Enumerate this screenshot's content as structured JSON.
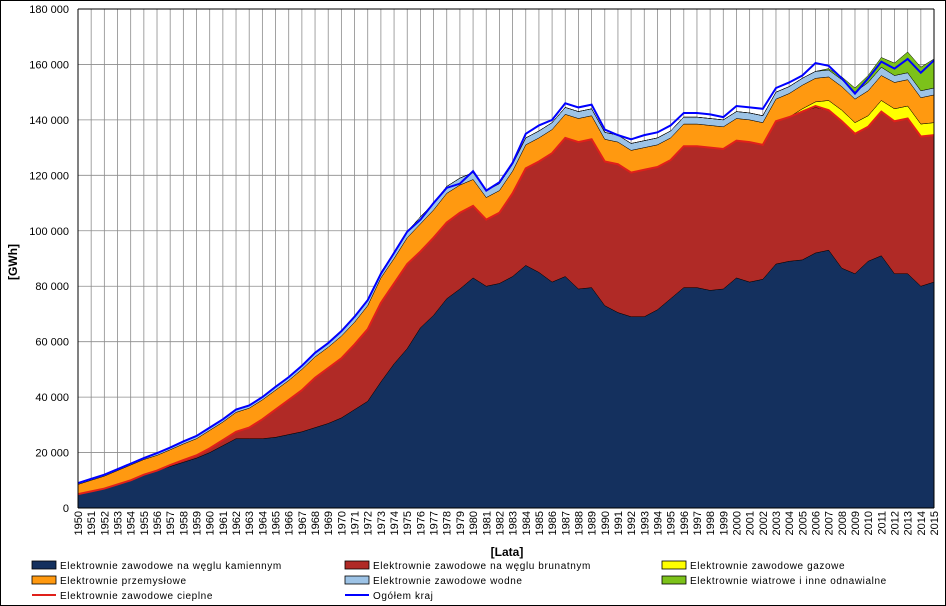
{
  "chart_data": {
    "type": "area",
    "xlabel": "[Lata]",
    "ylabel": "[GWh]",
    "ylim": [
      0,
      180000
    ],
    "y_ticks": [
      "0",
      "20 000",
      "40 000",
      "60 000",
      "80 000",
      "100 000",
      "120 000",
      "140 000",
      "160 000",
      "180 000"
    ],
    "grid": true,
    "legend_position": "bottom",
    "x": [
      "1950",
      "1951",
      "1952",
      "1953",
      "1954",
      "1955",
      "1956",
      "1957",
      "1958",
      "1959",
      "1960",
      "1961",
      "1962",
      "1963",
      "1964",
      "1965",
      "1966",
      "1967",
      "1968",
      "1969",
      "1970",
      "1971",
      "1972",
      "1973",
      "1974",
      "1975",
      "1976",
      "1977",
      "1978",
      "1979",
      "1980",
      "1981",
      "1982",
      "1983",
      "1984",
      "1985",
      "1986",
      "1987",
      "1988",
      "1989",
      "1990",
      "1991",
      "1992",
      "1993",
      "1994",
      "1995",
      "1996",
      "1997",
      "1998",
      "1999",
      "2000",
      "2001",
      "2002",
      "2003",
      "2004",
      "2005",
      "2006",
      "2007",
      "2008",
      "2009",
      "2010",
      "2011",
      "2012",
      "2013",
      "2014",
      "2015"
    ],
    "series": [
      {
        "name": "Elektrownie zawodowe na węglu kamiennym",
        "kind": "area",
        "color": "#14305e",
        "values": [
          5000,
          6000,
          7000,
          8500,
          10000,
          12000,
          13500,
          15000,
          16500,
          18000,
          20000,
          22500,
          25000,
          25000,
          25000,
          25500,
          26500,
          27500,
          29000,
          30500,
          32500,
          35500,
          38500,
          45500,
          52000,
          57500,
          65000,
          69500,
          75500,
          79000,
          83000,
          80000,
          81000,
          83500,
          87500,
          85000,
          81500,
          83500,
          79000,
          79500,
          73000,
          70500,
          69000,
          69000,
          71500,
          75500,
          79500,
          79500,
          78500,
          79000,
          83000,
          81500,
          82500,
          88000,
          89000,
          89500,
          92000,
          93000,
          86500,
          84500,
          89000,
          91000,
          84500,
          84500,
          80000,
          81500
        ]
      },
      {
        "name": "Elektrownie zawodowe na węglu brunatnym",
        "kind": "area",
        "color": "#b02a26",
        "values": [
          0,
          0,
          0,
          0,
          0,
          0,
          0,
          500,
          800,
          1000,
          1500,
          2000,
          2500,
          4000,
          7000,
          10000,
          12500,
          15000,
          18000,
          20000,
          21500,
          23500,
          26000,
          28500,
          29000,
          30500,
          27500,
          28000,
          27500,
          27500,
          26000,
          24000,
          25500,
          30000,
          35000,
          40000,
          46500,
          50000,
          53000,
          53500,
          52000,
          53500,
          52000,
          53000,
          51500,
          50000,
          51000,
          51000,
          51500,
          50500,
          49500,
          50500,
          48500,
          51500,
          52000,
          53500,
          52500,
          50500,
          53000,
          50500,
          48500,
          52000,
          55000,
          56000,
          54000,
          53000
        ]
      },
      {
        "name": "Elektrownie zawodowe cieplne",
        "kind": "line",
        "color": "#e0201a",
        "values": [
          5000,
          6000,
          7000,
          8500,
          10000,
          12000,
          13500,
          15500,
          17300,
          19000,
          21500,
          24500,
          27500,
          29000,
          32000,
          35500,
          39000,
          42500,
          47000,
          50500,
          54000,
          59000,
          64500,
          74000,
          81000,
          88000,
          92500,
          97500,
          103000,
          106500,
          109000,
          104000,
          106500,
          113500,
          122500,
          125000,
          128000,
          133500,
          132000,
          133000,
          125000,
          124000,
          121000,
          122000,
          123000,
          125500,
          130500,
          130500,
          130000,
          129500,
          132500,
          132000,
          131000,
          139500,
          141000,
          143000,
          145000,
          143500,
          139500,
          135000,
          137500,
          143000,
          139500,
          140500,
          134000,
          134500
        ]
      },
      {
        "name": "Elektrownie zawodowe gazowe",
        "kind": "area",
        "color": "#ffff00",
        "values": [
          0,
          0,
          0,
          0,
          0,
          0,
          0,
          0,
          0,
          0,
          0,
          0,
          0,
          0,
          0,
          0,
          0,
          0,
          0,
          0,
          0,
          0,
          0,
          0,
          0,
          0,
          0,
          0,
          0,
          0,
          0,
          0,
          0,
          0,
          0,
          0,
          0,
          0,
          0,
          0,
          0,
          0,
          0,
          0,
          0,
          0,
          0,
          0,
          0,
          0,
          0,
          0,
          0,
          0,
          0,
          1000,
          2000,
          3500,
          4000,
          4000,
          4000,
          4000,
          4500,
          4500,
          4500,
          4500
        ]
      },
      {
        "name": "Elektrownie przemysłowe",
        "kind": "area",
        "color": "#ff9910",
        "values": [
          3500,
          4000,
          4500,
          5000,
          5500,
          5500,
          5500,
          5500,
          5800,
          6000,
          6500,
          6500,
          7000,
          7000,
          7000,
          7000,
          7000,
          7500,
          7500,
          7500,
          8000,
          8000,
          8500,
          9000,
          9000,
          9500,
          10000,
          10000,
          10500,
          10000,
          9500,
          8000,
          8000,
          8000,
          8500,
          8500,
          8500,
          8500,
          8500,
          8500,
          8000,
          8000,
          8000,
          8000,
          8000,
          8000,
          8000,
          8000,
          8000,
          8000,
          8000,
          8000,
          8000,
          8000,
          8500,
          8500,
          8500,
          8500,
          8500,
          8500,
          9000,
          9000,
          9500,
          9500,
          9500,
          10000
        ]
      },
      {
        "name": "Elektrownie zawodowe wodne",
        "kind": "area",
        "color": "#9dc3e6",
        "values": [
          500,
          500,
          500,
          500,
          500,
          500,
          800,
          800,
          800,
          800,
          900,
          1000,
          1000,
          1000,
          1000,
          1200,
          1200,
          1300,
          1500,
          1500,
          1800,
          2000,
          2000,
          2000,
          2200,
          2200,
          2500,
          2500,
          2500,
          2500,
          2500,
          2500,
          2500,
          2500,
          2500,
          2500,
          2500,
          2500,
          2500,
          2500,
          2500,
          2500,
          2500,
          2500,
          2500,
          2500,
          2500,
          2500,
          2500,
          2500,
          2500,
          2500,
          2500,
          2500,
          2500,
          2500,
          2500,
          2500,
          2500,
          2500,
          3000,
          3000,
          2500,
          2500,
          2500,
          2500
        ]
      },
      {
        "name": "Elektrownie wiatrowe i inne odnawialne",
        "kind": "area",
        "color": "#7cc21a",
        "values": [
          0,
          0,
          0,
          0,
          0,
          0,
          0,
          0,
          0,
          0,
          0,
          0,
          0,
          0,
          0,
          0,
          0,
          0,
          0,
          0,
          0,
          0,
          0,
          0,
          0,
          0,
          0,
          0,
          0,
          0,
          0,
          0,
          0,
          0,
          0,
          0,
          0,
          0,
          0,
          0,
          0,
          0,
          0,
          0,
          0,
          0,
          0,
          0,
          0,
          0,
          0,
          0,
          0,
          0,
          0,
          0,
          0,
          500,
          1000,
          1500,
          2500,
          3500,
          4500,
          7500,
          8500,
          10500
        ]
      },
      {
        "name": "Ogółem kraj",
        "kind": "line",
        "color": "#0000ff",
        "values": [
          9000,
          10500,
          12000,
          14000,
          16000,
          18000,
          19800,
          21800,
          24000,
          26000,
          29000,
          32000,
          35500,
          37000,
          40000,
          43700,
          47200,
          51300,
          56000,
          59500,
          63800,
          69000,
          75000,
          84500,
          92000,
          99700,
          104000,
          110000,
          115500,
          117000,
          121500,
          114500,
          117500,
          124500,
          135000,
          138000,
          140000,
          146000,
          144500,
          145500,
          136500,
          134500,
          133000,
          134500,
          135500,
          138000,
          142500,
          142500,
          142000,
          141000,
          145000,
          144500,
          144000,
          151500,
          153500,
          156000,
          160500,
          159500,
          155000,
          149500,
          155000,
          161000,
          158500,
          162000,
          157000,
          161500
        ]
      }
    ],
    "legend": [
      "Elektrownie zawodowe na węglu kamiennym",
      "Elektrownie zawodowe na węglu brunatnym",
      "Elektrownie zawodowe gazowe",
      "Elektrownie przemysłowe",
      "Elektrownie zawodowe wodne",
      "Elektrownie wiatrowe i inne odnawialne",
      "Elektrownie zawodowe cieplne",
      "Ogółem kraj"
    ]
  }
}
